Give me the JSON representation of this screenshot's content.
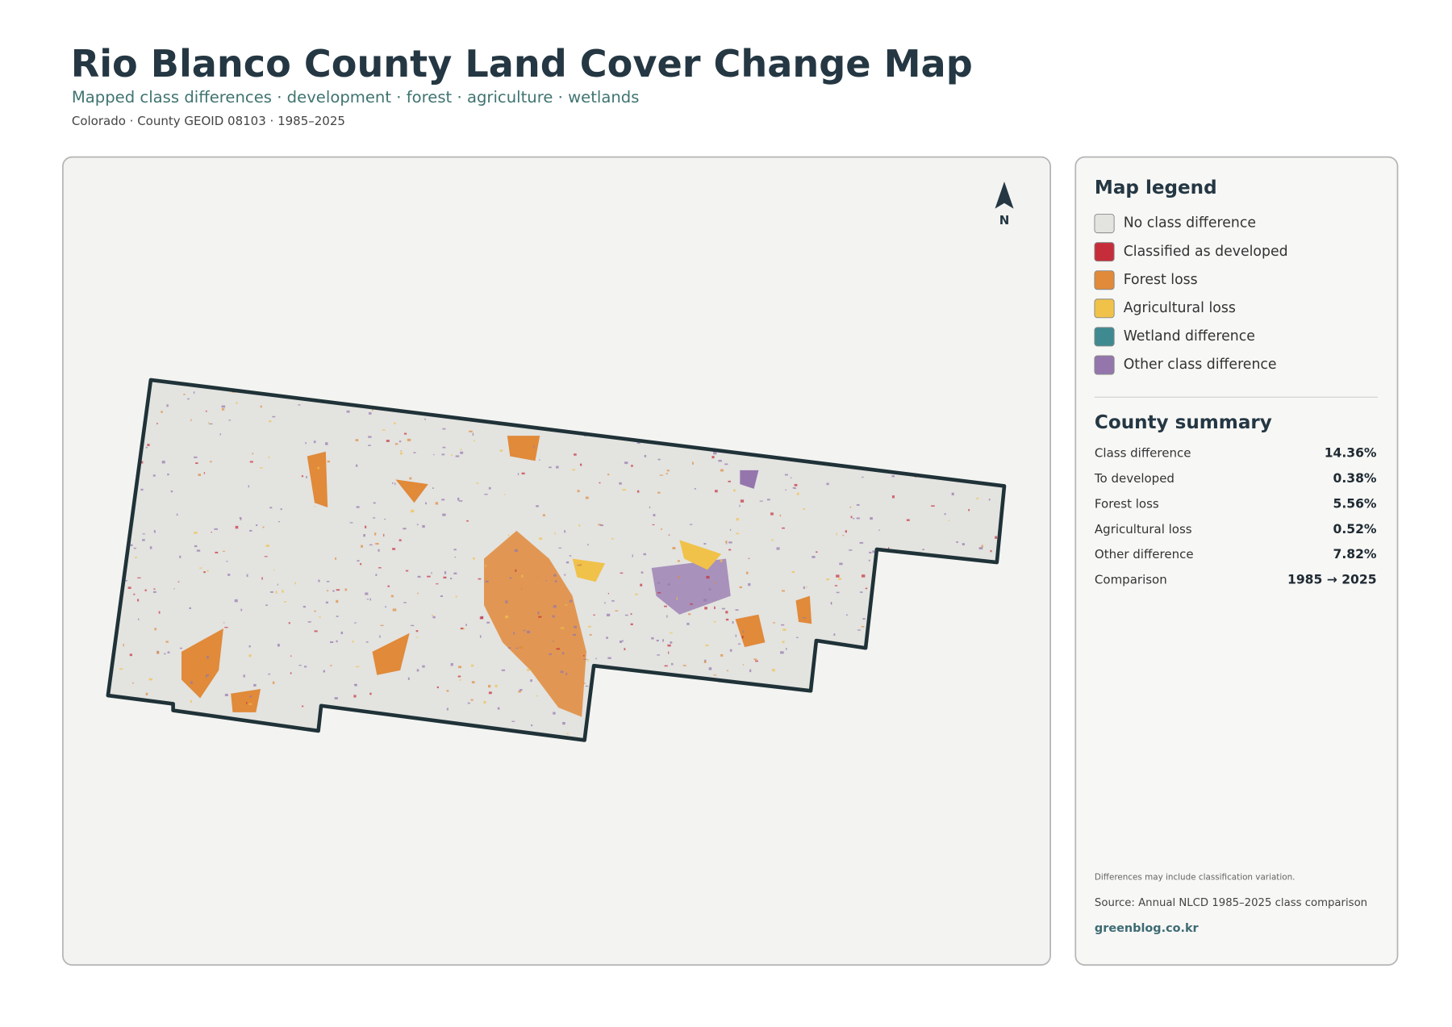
{
  "header": {
    "title": "Rio Blanco County Land Cover Change Map",
    "subtitle": "Mapped class differences · development · forest · agriculture · wetlands",
    "meta": "Colorado · County GEOID 08103 · 1985–2025"
  },
  "map": {
    "north_label": "N"
  },
  "legend": {
    "title": "Map legend",
    "items": [
      {
        "label": "No class difference",
        "color": "#e3e3e0"
      },
      {
        "label": "Classified as developed",
        "color": "#c62d3a"
      },
      {
        "label": "Forest loss",
        "color": "#e08a3a"
      },
      {
        "label": "Agricultural loss",
        "color": "#f0c24a"
      },
      {
        "label": "Wetland difference",
        "color": "#3f8a91"
      },
      {
        "label": "Other class difference",
        "color": "#9476ad"
      }
    ]
  },
  "summary": {
    "title": "County summary",
    "rows": [
      [
        "Class difference",
        "14.36%"
      ],
      [
        "To developed",
        "0.38%"
      ],
      [
        "Forest loss",
        "5.56%"
      ],
      [
        "Agricultural loss",
        "0.52%"
      ],
      [
        "Other difference",
        "7.82%"
      ],
      [
        "Comparison",
        "1985 → 2025"
      ]
    ]
  },
  "footer": {
    "note": "Differences may include classification variation.",
    "source": "Source: Annual NLCD 1985–2025 class comparison",
    "site": "greenblog.co.kr"
  }
}
